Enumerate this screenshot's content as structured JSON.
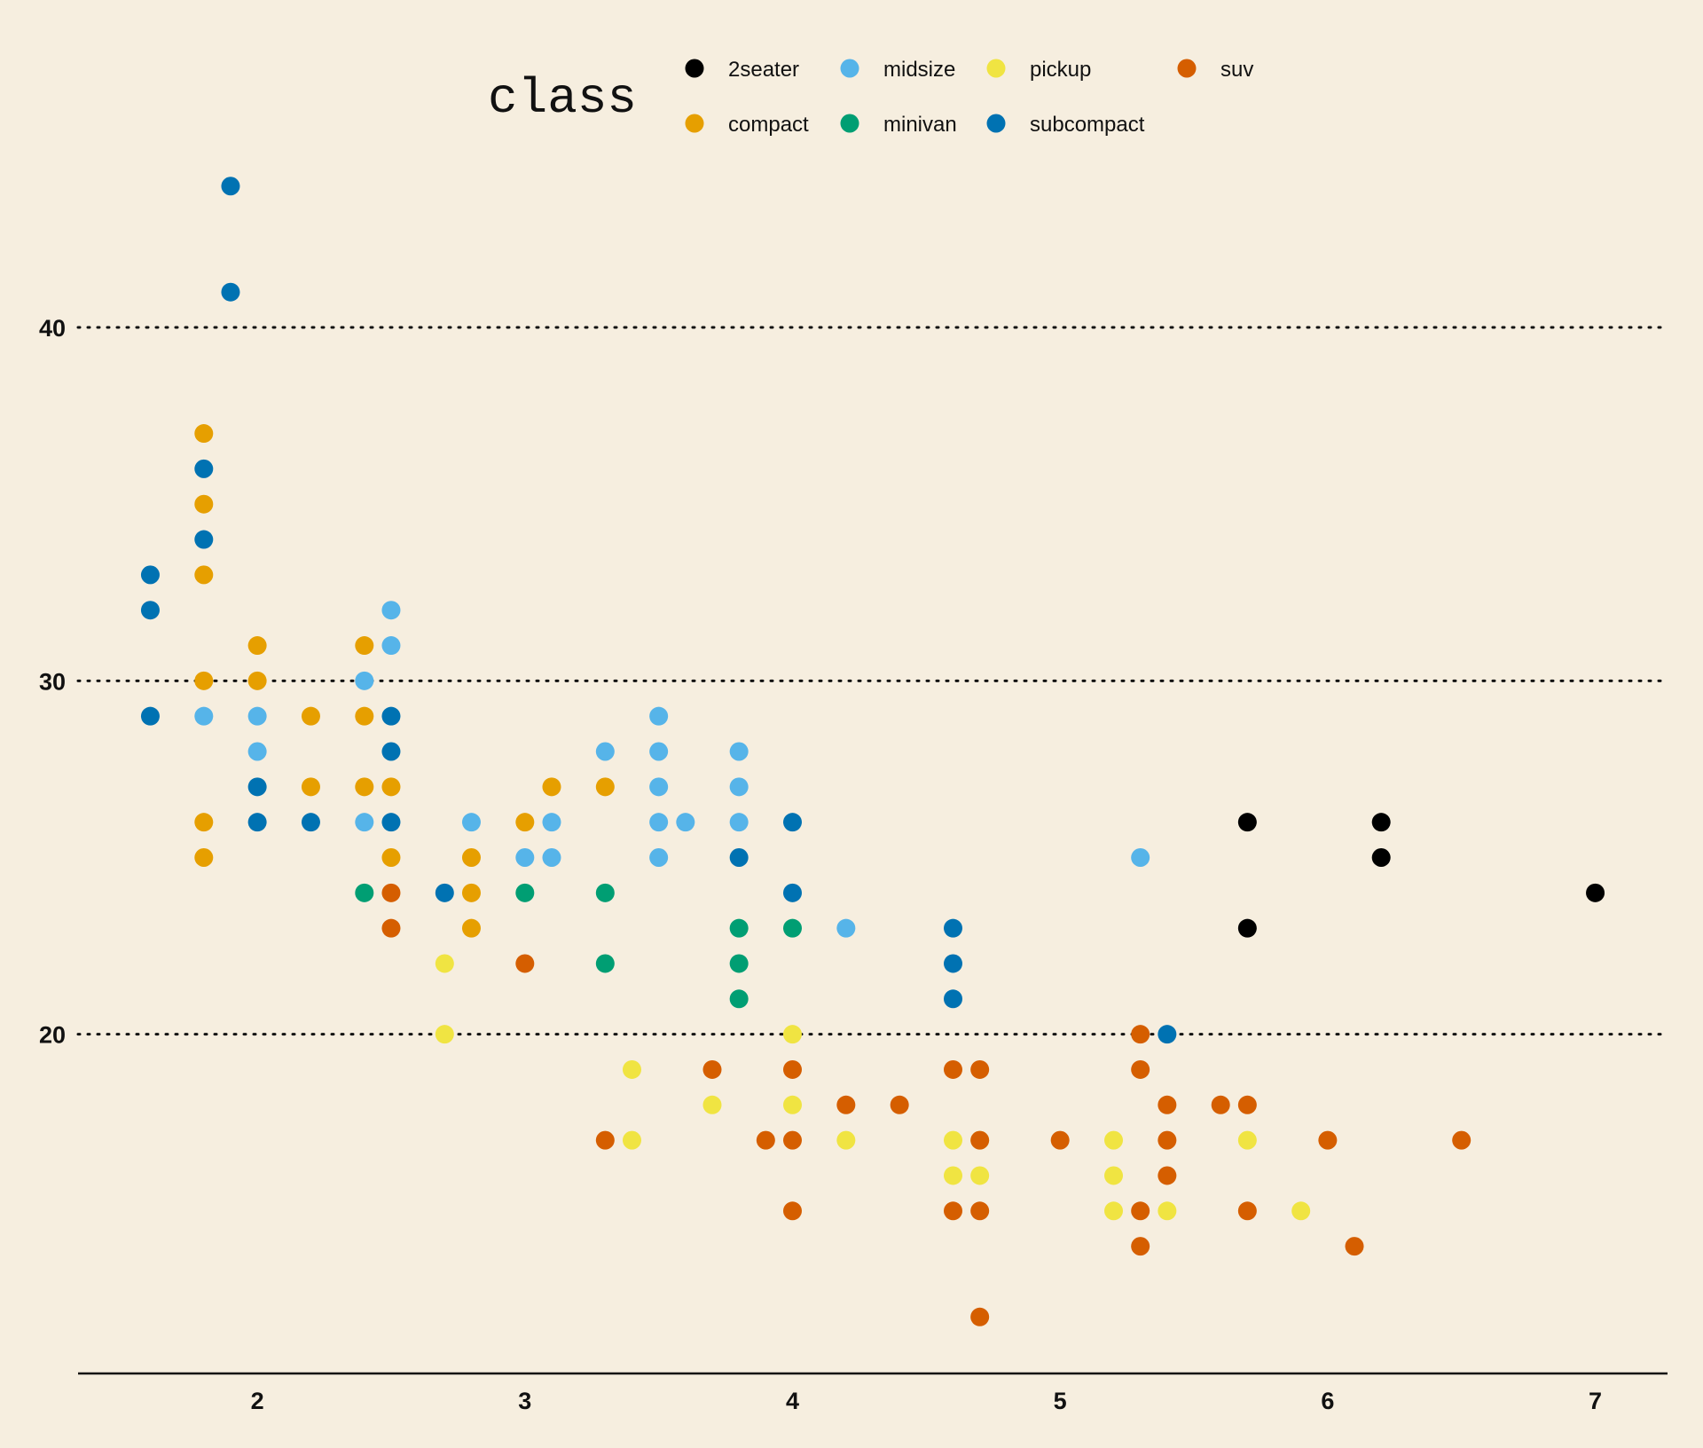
{
  "chart_data": {
    "type": "scatter",
    "xlabel": "",
    "ylabel": "",
    "xlim": [
      1.33,
      7.27
    ],
    "ylim": [
      10.4,
      45.5
    ],
    "x_ticks": [
      2,
      3,
      4,
      5,
      6,
      7
    ],
    "y_ticks": [
      20,
      30,
      40
    ],
    "grid": "horizontal dotted",
    "legend": {
      "title": "class",
      "placement": "top",
      "entries": [
        "2seater",
        "compact",
        "midsize",
        "minivan",
        "pickup",
        "subcompact",
        "suv"
      ]
    },
    "colors": {
      "2seater": "#000000",
      "compact": "#e69f00",
      "midsize": "#56b4e9",
      "minivan": "#009e73",
      "pickup": "#f0e442",
      "subcompact": "#0072b2",
      "suv": "#d55e00"
    },
    "series": [
      {
        "name": "2seater",
        "points": [
          [
            5.7,
            26
          ],
          [
            5.7,
            23
          ],
          [
            6.2,
            26
          ],
          [
            6.2,
            25
          ],
          [
            7.0,
            24
          ]
        ]
      },
      {
        "name": "compact",
        "points": [
          [
            1.8,
            37
          ],
          [
            1.8,
            35
          ],
          [
            1.8,
            33
          ],
          [
            1.8,
            30
          ],
          [
            1.8,
            26
          ],
          [
            1.8,
            25
          ],
          [
            2.0,
            31
          ],
          [
            2.0,
            30
          ],
          [
            2.2,
            29
          ],
          [
            2.2,
            27
          ],
          [
            2.4,
            31
          ],
          [
            2.4,
            29
          ],
          [
            2.4,
            27
          ],
          [
            2.5,
            27
          ],
          [
            2.5,
            25
          ],
          [
            2.8,
            25
          ],
          [
            2.8,
            24
          ],
          [
            2.8,
            23
          ],
          [
            3.0,
            26
          ],
          [
            3.1,
            27
          ],
          [
            3.3,
            27
          ]
        ]
      },
      {
        "name": "midsize",
        "points": [
          [
            1.8,
            29
          ],
          [
            2.0,
            29
          ],
          [
            2.0,
            28
          ],
          [
            2.4,
            30
          ],
          [
            2.4,
            26
          ],
          [
            2.5,
            32
          ],
          [
            2.5,
            31
          ],
          [
            2.8,
            26
          ],
          [
            3.0,
            25
          ],
          [
            3.1,
            26
          ],
          [
            3.1,
            25
          ],
          [
            3.3,
            28
          ],
          [
            3.5,
            29
          ],
          [
            3.5,
            28
          ],
          [
            3.5,
            27
          ],
          [
            3.5,
            26
          ],
          [
            3.5,
            25
          ],
          [
            3.6,
            26
          ],
          [
            3.8,
            28
          ],
          [
            3.8,
            27
          ],
          [
            3.8,
            26
          ],
          [
            4.2,
            23
          ],
          [
            5.3,
            25
          ]
        ]
      },
      {
        "name": "minivan",
        "points": [
          [
            2.4,
            24
          ],
          [
            3.0,
            24
          ],
          [
            3.3,
            24
          ],
          [
            3.3,
            22
          ],
          [
            3.8,
            23
          ],
          [
            3.8,
            22
          ],
          [
            3.8,
            21
          ],
          [
            4.0,
            23
          ]
        ]
      },
      {
        "name": "pickup",
        "points": [
          [
            2.7,
            22
          ],
          [
            2.7,
            20
          ],
          [
            3.4,
            19
          ],
          [
            3.4,
            17
          ],
          [
            3.7,
            18
          ],
          [
            4.0,
            20
          ],
          [
            4.0,
            18
          ],
          [
            4.2,
            17
          ],
          [
            4.6,
            17
          ],
          [
            4.6,
            16
          ],
          [
            4.7,
            17
          ],
          [
            4.7,
            16
          ],
          [
            5.2,
            17
          ],
          [
            5.2,
            16
          ],
          [
            5.2,
            15
          ],
          [
            5.4,
            15
          ],
          [
            5.7,
            17
          ],
          [
            5.9,
            15
          ]
        ]
      },
      {
        "name": "subcompact",
        "points": [
          [
            1.6,
            33
          ],
          [
            1.6,
            32
          ],
          [
            1.6,
            29
          ],
          [
            1.8,
            36
          ],
          [
            1.8,
            34
          ],
          [
            1.9,
            44
          ],
          [
            1.9,
            41
          ],
          [
            2.0,
            27
          ],
          [
            2.0,
            26
          ],
          [
            2.2,
            26
          ],
          [
            2.5,
            29
          ],
          [
            2.5,
            28
          ],
          [
            2.5,
            26
          ],
          [
            2.7,
            24
          ],
          [
            3.8,
            25
          ],
          [
            4.0,
            26
          ],
          [
            4.0,
            24
          ],
          [
            4.6,
            23
          ],
          [
            4.6,
            22
          ],
          [
            4.6,
            21
          ],
          [
            5.4,
            20
          ]
        ]
      },
      {
        "name": "suv",
        "points": [
          [
            2.5,
            24
          ],
          [
            2.5,
            23
          ],
          [
            3.0,
            22
          ],
          [
            3.3,
            17
          ],
          [
            3.7,
            19
          ],
          [
            3.9,
            17
          ],
          [
            4.0,
            19
          ],
          [
            4.0,
            17
          ],
          [
            4.0,
            15
          ],
          [
            4.2,
            18
          ],
          [
            4.4,
            18
          ],
          [
            4.6,
            19
          ],
          [
            4.6,
            15
          ],
          [
            4.7,
            19
          ],
          [
            4.7,
            17
          ],
          [
            4.7,
            15
          ],
          [
            4.7,
            12
          ],
          [
            5.0,
            17
          ],
          [
            5.3,
            20
          ],
          [
            5.3,
            19
          ],
          [
            5.3,
            15
          ],
          [
            5.3,
            14
          ],
          [
            5.4,
            18
          ],
          [
            5.4,
            17
          ],
          [
            5.4,
            16
          ],
          [
            5.6,
            18
          ],
          [
            5.7,
            18
          ],
          [
            5.7,
            15
          ],
          [
            6.0,
            17
          ],
          [
            6.1,
            14
          ],
          [
            6.5,
            17
          ]
        ]
      }
    ]
  }
}
